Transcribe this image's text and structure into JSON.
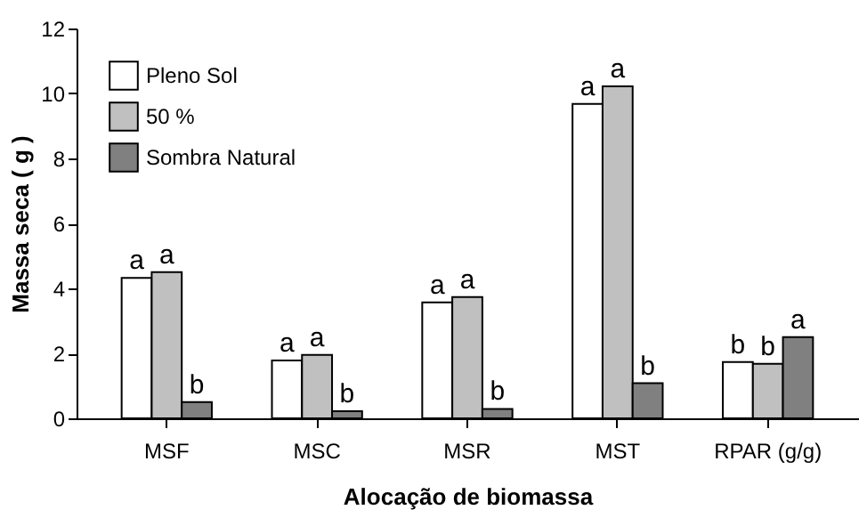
{
  "chart_data": {
    "type": "bar",
    "xlabel": "Alocação de biomassa",
    "ylabel": "Massa seca ( g )",
    "categories": [
      "MSF",
      "MSC",
      "MSR",
      "MST",
      "RPAR (g/g)"
    ],
    "series": [
      {
        "name": "Pleno Sol",
        "color": "#ffffff",
        "values": [
          4.32,
          1.78,
          3.57,
          9.68,
          1.73
        ],
        "value_labels": [
          "a",
          "a",
          "a",
          "a",
          "b"
        ]
      },
      {
        "name": "50 %",
        "color": "#c0c0c0",
        "values": [
          4.5,
          1.95,
          3.73,
          10.22,
          1.68
        ],
        "value_labels": [
          "a",
          "a",
          "a",
          "a",
          "b"
        ]
      },
      {
        "name": "Sombra Natural",
        "color": "#808080",
        "values": [
          0.5,
          0.22,
          0.29,
          1.08,
          2.5
        ],
        "value_labels": [
          "b",
          "b",
          "b",
          "b",
          "a"
        ]
      }
    ],
    "ylim": [
      0,
      12
    ],
    "yticks": [
      0,
      2,
      4,
      6,
      8,
      10,
      12
    ],
    "grid": false,
    "legend": "top left"
  }
}
